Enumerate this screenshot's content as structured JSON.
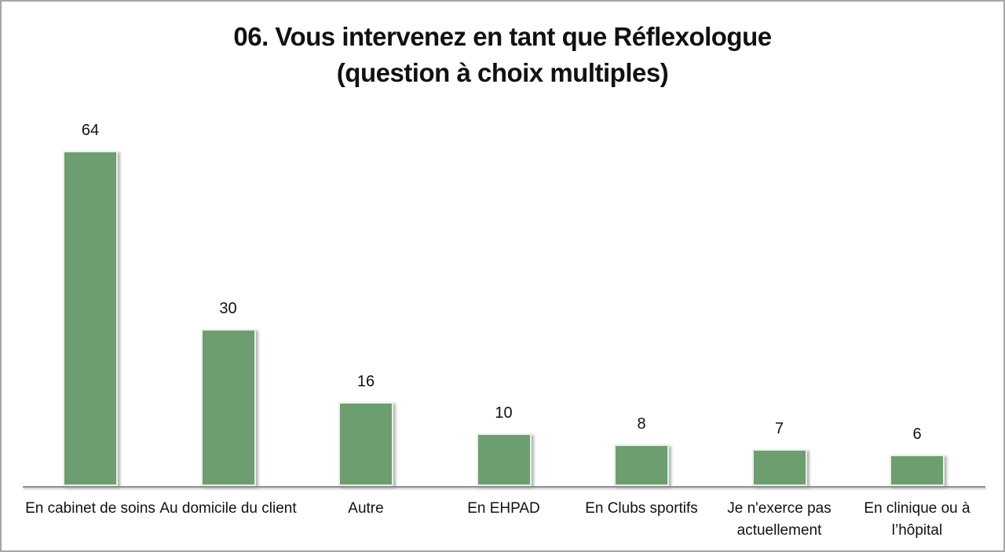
{
  "chart_data": {
    "type": "bar",
    "title": "06. Vous intervenez en tant que Réflexologue (question à choix multiples)",
    "title_line1": "06. Vous intervenez en tant que Réflexologue",
    "title_line2": "(question à choix multiples)",
    "categories": [
      "En cabinet de soins",
      "Au domicile du client",
      "Autre",
      "En EHPAD",
      "En Clubs sportifs",
      "Je n'exerce pas actuellement",
      "En clinique ou à l’hôpital"
    ],
    "values": [
      64,
      30,
      16,
      10,
      8,
      7,
      6
    ],
    "ylim": [
      0,
      64
    ],
    "xlabel": "",
    "ylabel": "",
    "grid": false,
    "legend_position": "none",
    "data_labels": true,
    "colors": {
      "bar_fill": "#6d9e70",
      "bar_border": "#e9f1e8",
      "axis_line": "#8f8f8f",
      "text": "#111111",
      "background": "#ffffff",
      "frame_border": "#a6a6a6"
    }
  }
}
